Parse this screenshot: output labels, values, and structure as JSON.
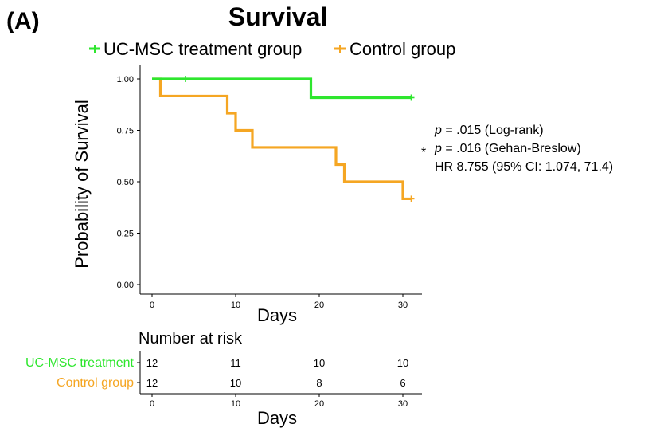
{
  "panel_label": "(A)",
  "chart_data": {
    "type": "line",
    "chart_subtype": "kaplan-meier",
    "title": "Survival",
    "xlabel": "Days",
    "ylabel": "Probability of Survival",
    "xlim": [
      -1,
      32
    ],
    "ylim": [
      0,
      1.05
    ],
    "x_ticks": [
      0,
      10,
      20,
      30
    ],
    "y_ticks": [
      0.0,
      0.25,
      0.5,
      0.75,
      1.0
    ],
    "y_tick_labels": [
      "0.00",
      "0.25",
      "0.50",
      "0.75",
      "1.00"
    ],
    "grid": false,
    "legend_position": "top",
    "series": [
      {
        "name": "UC-MSC treatment group",
        "color": "#2ee62e",
        "steps": [
          [
            0,
            1.0
          ],
          [
            19,
            0.909
          ],
          [
            31,
            0.909
          ]
        ],
        "censored": [
          [
            4,
            1.0
          ],
          [
            31,
            0.909
          ]
        ]
      },
      {
        "name": "Control group",
        "color": "#f5a623",
        "steps": [
          [
            0,
            1.0
          ],
          [
            1,
            0.917
          ],
          [
            9,
            0.833
          ],
          [
            10,
            0.75
          ],
          [
            12,
            0.667
          ],
          [
            22,
            0.583
          ],
          [
            23,
            0.5
          ],
          [
            30,
            0.417
          ],
          [
            31,
            0.417
          ]
        ],
        "censored": [
          [
            31,
            0.417
          ]
        ]
      }
    ],
    "annotations": {
      "line1_p": "p",
      "line1_rest": " = .015 (Log-rank)",
      "line2_p": "p",
      "line2_rest": " = .016 (Gehan-Breslow)",
      "line3": "HR 8.755 (95% CI: 1.074, 71.4)",
      "asterisk": "*"
    },
    "risk_table": {
      "title": "Number at risk",
      "xlabel": "Days",
      "x_ticks": [
        0,
        10,
        20,
        30
      ],
      "rows": [
        {
          "label": "UC-MSC treatment",
          "color": "#2ee62e",
          "values": [
            12,
            11,
            10,
            10
          ]
        },
        {
          "label": "Control group",
          "color": "#f5a623",
          "values": [
            12,
            10,
            8,
            6
          ]
        }
      ]
    }
  }
}
